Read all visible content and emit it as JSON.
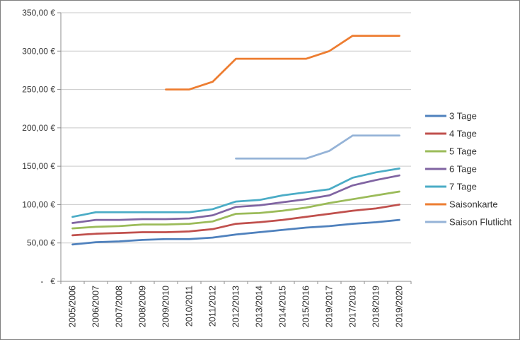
{
  "frame": {
    "background": "#FFFFFF",
    "border_color": "#7F7F7F",
    "axis_color": "#8C8C8C",
    "gridline_color": "#C9C9C9",
    "label_color": "#333333"
  },
  "chart_data": {
    "type": "line",
    "title": "",
    "xlabel": "",
    "ylabel": "",
    "ylim": [
      0,
      350
    ],
    "ytick_step": 50,
    "ytick_labels": [
      "-   €",
      "50,00 €",
      "100,00 €",
      "150,00 €",
      "200,00 €",
      "250,00 €",
      "300,00 €",
      "350,00 €"
    ],
    "grid": true,
    "legend_position": "right",
    "currency": "€",
    "categories": [
      "2005/2006",
      "2006/2007",
      "2007/2008",
      "2008/2009",
      "2009/2010",
      "2010/2011",
      "2011/2012",
      "2012/2013",
      "2013/2014",
      "2014/2015",
      "2015/2016",
      "2019/2017",
      "2017/2018",
      "2018/2019",
      "2019/2020"
    ],
    "series": [
      {
        "name": "3 Tage",
        "color": "#4F81BD",
        "values": [
          48,
          51,
          52,
          54,
          55,
          55,
          57,
          61,
          64,
          67,
          70,
          72,
          75,
          77,
          80
        ]
      },
      {
        "name": "4 Tage",
        "color": "#C0504D",
        "values": [
          60,
          62,
          63,
          64,
          64,
          65,
          68,
          75,
          77,
          80,
          84,
          88,
          92,
          95,
          100
        ]
      },
      {
        "name": "5 Tage",
        "color": "#9BBB59",
        "values": [
          69,
          71,
          72,
          74,
          74,
          75,
          78,
          88,
          89,
          92,
          96,
          102,
          107,
          112,
          117
        ]
      },
      {
        "name": "6 Tage",
        "color": "#8064A2",
        "values": [
          76,
          80,
          80,
          81,
          81,
          82,
          86,
          97,
          99,
          103,
          107,
          112,
          125,
          132,
          138
        ]
      },
      {
        "name": "7 Tage",
        "color": "#4BACC6",
        "values": [
          84,
          90,
          90,
          90,
          90,
          90,
          94,
          104,
          106,
          112,
          116,
          120,
          135,
          142,
          147
        ]
      },
      {
        "name": "Saisonkarte",
        "color": "#ED7D31",
        "values": [
          null,
          null,
          null,
          null,
          250,
          250,
          260,
          290,
          290,
          290,
          290,
          300,
          320,
          320,
          320
        ]
      },
      {
        "name": "Saison Flutlicht",
        "color": "#95B3D7",
        "values": [
          null,
          null,
          null,
          null,
          null,
          null,
          null,
          160,
          160,
          160,
          160,
          170,
          190,
          190,
          190
        ]
      }
    ]
  }
}
